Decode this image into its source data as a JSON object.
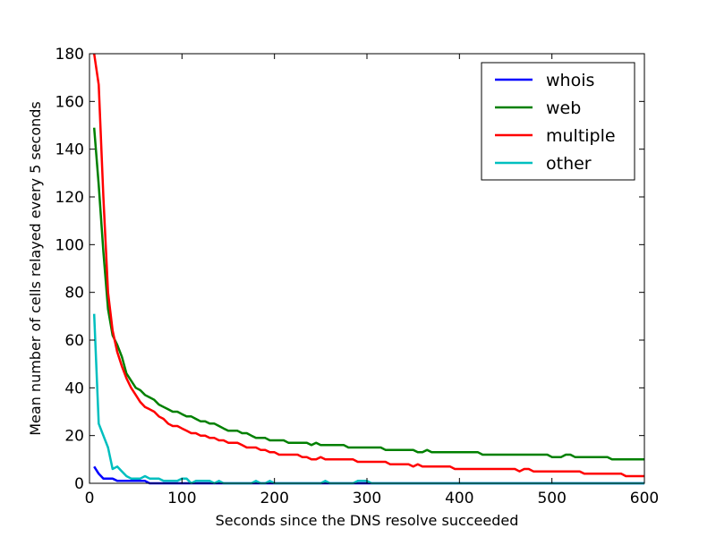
{
  "chart_data": {
    "type": "line",
    "title": "",
    "xlabel": "Seconds since the DNS resolve succeeded",
    "ylabel": "Mean number of cells relayed every 5 seconds",
    "xlim": [
      0,
      600
    ],
    "ylim": [
      0,
      180
    ],
    "xticks": [
      0,
      100,
      200,
      300,
      400,
      500,
      600
    ],
    "yticks": [
      0,
      20,
      40,
      60,
      80,
      100,
      120,
      140,
      160,
      180
    ],
    "grid": false,
    "legend_position": "top-right",
    "series": [
      {
        "name": "whois",
        "color": "#0000ff",
        "points": [
          [
            5,
            7
          ],
          [
            10,
            4
          ],
          [
            15,
            2
          ],
          [
            20,
            2
          ],
          [
            25,
            2
          ],
          [
            30,
            1
          ],
          [
            40,
            1
          ],
          [
            50,
            1
          ],
          [
            60,
            1
          ],
          [
            65,
            0
          ],
          [
            100,
            0
          ],
          [
            200,
            0
          ],
          [
            300,
            0
          ],
          [
            400,
            0
          ],
          [
            500,
            0
          ],
          [
            600,
            0
          ]
        ]
      },
      {
        "name": "web",
        "color": "#008000",
        "points": [
          [
            5,
            149
          ],
          [
            10,
            125
          ],
          [
            15,
            97
          ],
          [
            20,
            73
          ],
          [
            25,
            62
          ],
          [
            30,
            58
          ],
          [
            35,
            53
          ],
          [
            40,
            46
          ],
          [
            45,
            43
          ],
          [
            50,
            40
          ],
          [
            55,
            39
          ],
          [
            60,
            37
          ],
          [
            65,
            36
          ],
          [
            70,
            35
          ],
          [
            75,
            33
          ],
          [
            80,
            32
          ],
          [
            85,
            31
          ],
          [
            90,
            30
          ],
          [
            95,
            30
          ],
          [
            100,
            29
          ],
          [
            105,
            28
          ],
          [
            110,
            28
          ],
          [
            115,
            27
          ],
          [
            120,
            26
          ],
          [
            125,
            26
          ],
          [
            130,
            25
          ],
          [
            135,
            25
          ],
          [
            140,
            24
          ],
          [
            145,
            23
          ],
          [
            150,
            22
          ],
          [
            155,
            22
          ],
          [
            160,
            22
          ],
          [
            165,
            21
          ],
          [
            170,
            21
          ],
          [
            175,
            20
          ],
          [
            180,
            19
          ],
          [
            190,
            19
          ],
          [
            195,
            18
          ],
          [
            210,
            18
          ],
          [
            215,
            17
          ],
          [
            235,
            17
          ],
          [
            240,
            16
          ],
          [
            245,
            17
          ],
          [
            250,
            16
          ],
          [
            275,
            16
          ],
          [
            280,
            15
          ],
          [
            315,
            15
          ],
          [
            320,
            14
          ],
          [
            350,
            14
          ],
          [
            355,
            13
          ],
          [
            360,
            13
          ],
          [
            365,
            14
          ],
          [
            370,
            13
          ],
          [
            420,
            13
          ],
          [
            425,
            12
          ],
          [
            495,
            12
          ],
          [
            500,
            11
          ],
          [
            510,
            11
          ],
          [
            515,
            12
          ],
          [
            520,
            12
          ],
          [
            525,
            11
          ],
          [
            560,
            11
          ],
          [
            565,
            10
          ],
          [
            600,
            10
          ]
        ]
      },
      {
        "name": "multiple",
        "color": "#ff0000",
        "points": [
          [
            5,
            180
          ],
          [
            10,
            167
          ],
          [
            15,
            120
          ],
          [
            20,
            80
          ],
          [
            25,
            64
          ],
          [
            30,
            55
          ],
          [
            35,
            49
          ],
          [
            40,
            44
          ],
          [
            45,
            40
          ],
          [
            50,
            37
          ],
          [
            55,
            34
          ],
          [
            60,
            32
          ],
          [
            65,
            31
          ],
          [
            70,
            30
          ],
          [
            75,
            28
          ],
          [
            80,
            27
          ],
          [
            85,
            25
          ],
          [
            90,
            24
          ],
          [
            95,
            24
          ],
          [
            100,
            23
          ],
          [
            105,
            22
          ],
          [
            110,
            21
          ],
          [
            115,
            21
          ],
          [
            120,
            20
          ],
          [
            125,
            20
          ],
          [
            130,
            19
          ],
          [
            135,
            19
          ],
          [
            140,
            18
          ],
          [
            145,
            18
          ],
          [
            150,
            17
          ],
          [
            160,
            17
          ],
          [
            165,
            16
          ],
          [
            170,
            15
          ],
          [
            180,
            15
          ],
          [
            185,
            14
          ],
          [
            190,
            14
          ],
          [
            195,
            13
          ],
          [
            200,
            13
          ],
          [
            205,
            12
          ],
          [
            225,
            12
          ],
          [
            230,
            11
          ],
          [
            235,
            11
          ],
          [
            240,
            10
          ],
          [
            245,
            10
          ],
          [
            250,
            11
          ],
          [
            255,
            10
          ],
          [
            285,
            10
          ],
          [
            290,
            9
          ],
          [
            320,
            9
          ],
          [
            325,
            8
          ],
          [
            345,
            8
          ],
          [
            350,
            7
          ],
          [
            355,
            8
          ],
          [
            360,
            7
          ],
          [
            390,
            7
          ],
          [
            395,
            6
          ],
          [
            460,
            6
          ],
          [
            465,
            5
          ],
          [
            470,
            6
          ],
          [
            475,
            6
          ],
          [
            480,
            5
          ],
          [
            530,
            5
          ],
          [
            535,
            4
          ],
          [
            575,
            4
          ],
          [
            580,
            3
          ],
          [
            600,
            3
          ]
        ]
      },
      {
        "name": "other",
        "color": "#00bfbf",
        "points": [
          [
            5,
            71
          ],
          [
            10,
            25
          ],
          [
            15,
            20
          ],
          [
            20,
            15
          ],
          [
            25,
            6
          ],
          [
            30,
            7
          ],
          [
            35,
            5
          ],
          [
            40,
            3
          ],
          [
            45,
            2
          ],
          [
            55,
            2
          ],
          [
            60,
            3
          ],
          [
            65,
            2
          ],
          [
            75,
            2
          ],
          [
            80,
            1
          ],
          [
            95,
            1
          ],
          [
            100,
            2
          ],
          [
            105,
            2
          ],
          [
            110,
            0
          ],
          [
            115,
            1
          ],
          [
            125,
            1
          ],
          [
            130,
            1
          ],
          [
            135,
            0
          ],
          [
            140,
            1
          ],
          [
            145,
            0
          ],
          [
            175,
            0
          ],
          [
            180,
            1
          ],
          [
            185,
            0
          ],
          [
            190,
            0
          ],
          [
            195,
            1
          ],
          [
            200,
            0
          ],
          [
            250,
            0
          ],
          [
            255,
            1
          ],
          [
            260,
            0
          ],
          [
            285,
            0
          ],
          [
            290,
            1
          ],
          [
            300,
            1
          ],
          [
            305,
            0
          ],
          [
            400,
            0
          ],
          [
            500,
            0
          ],
          [
            600,
            0
          ]
        ]
      }
    ]
  }
}
